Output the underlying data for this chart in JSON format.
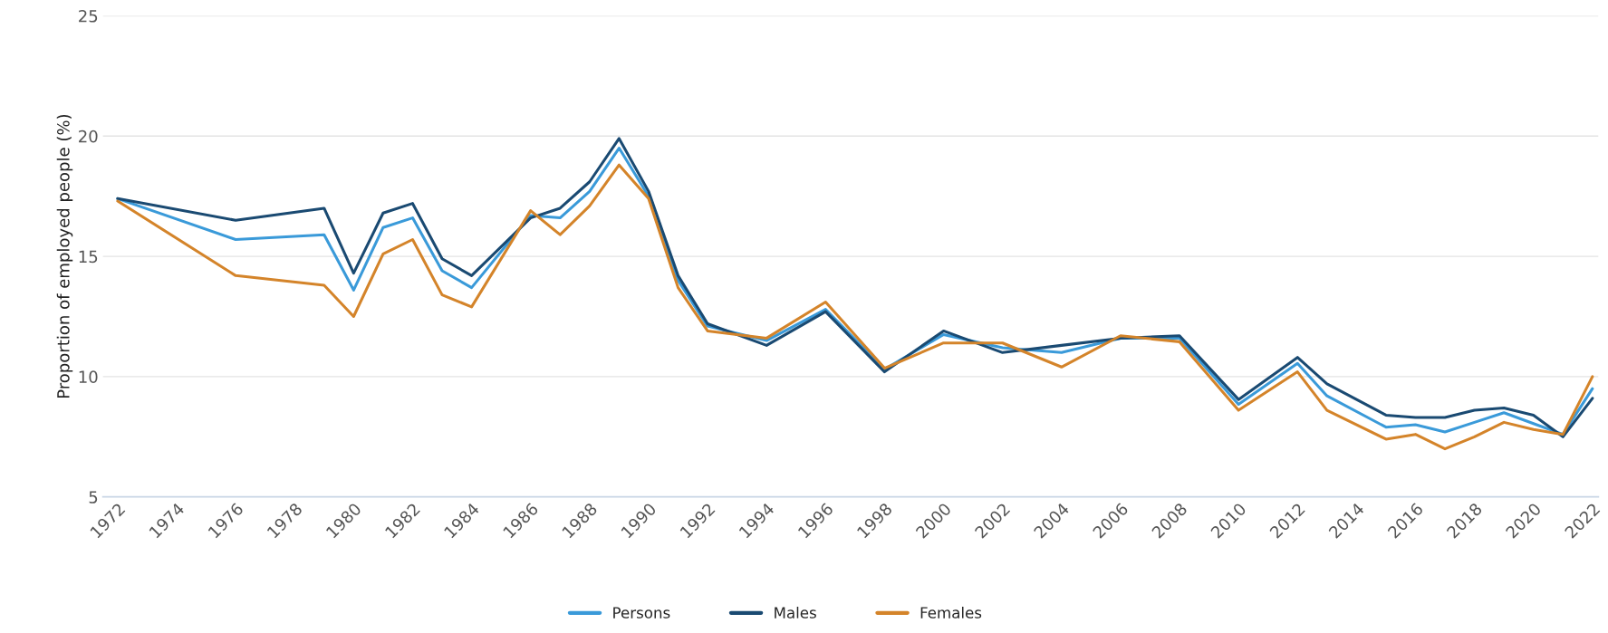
{
  "chart_data": {
    "type": "line",
    "ylabel": "Proportion of employed people (%)",
    "x": [
      1972,
      1976,
      1979,
      1980,
      1981,
      1982,
      1983,
      1984,
      1986,
      1987,
      1988,
      1989,
      1990,
      1991,
      1992,
      1994,
      1996,
      1998,
      2000,
      2002,
      2004,
      2006,
      2008,
      2010,
      2012,
      2013,
      2015,
      2016,
      2017,
      2018,
      2019,
      2020,
      2021,
      2022
    ],
    "series": [
      {
        "name": "Persons",
        "color": "#3a9ad9",
        "values": [
          17.4,
          15.7,
          15.9,
          13.6,
          16.2,
          16.6,
          14.4,
          13.7,
          16.7,
          16.6,
          17.7,
          19.5,
          17.5,
          14.0,
          12.1,
          11.5,
          12.8,
          10.3,
          11.75,
          11.2,
          11.0,
          11.6,
          11.6,
          8.85,
          10.55,
          9.2,
          7.9,
          8.0,
          7.7,
          8.1,
          8.5,
          8.05,
          7.6,
          9.5
        ]
      },
      {
        "name": "Males",
        "color": "#1a4a72",
        "values": [
          17.4,
          16.5,
          17.0,
          14.3,
          16.8,
          17.2,
          14.9,
          14.2,
          16.6,
          17.0,
          18.1,
          19.9,
          17.7,
          14.2,
          12.2,
          11.3,
          12.7,
          10.2,
          11.9,
          11.0,
          11.3,
          11.6,
          11.7,
          9.05,
          10.8,
          9.7,
          8.4,
          8.3,
          8.3,
          8.6,
          8.7,
          8.4,
          7.5,
          9.1
        ]
      },
      {
        "name": "Females",
        "color": "#d4842a",
        "values": [
          17.3,
          14.2,
          13.8,
          12.5,
          15.1,
          15.7,
          13.4,
          12.9,
          16.9,
          15.9,
          17.1,
          18.8,
          17.4,
          13.7,
          11.9,
          11.6,
          13.1,
          10.35,
          11.4,
          11.4,
          10.4,
          11.7,
          11.45,
          8.6,
          10.2,
          8.6,
          7.4,
          7.6,
          7.0,
          7.5,
          8.1,
          7.8,
          7.6,
          10.0
        ]
      }
    ],
    "xlim": [
      1971.5,
      2022.2
    ],
    "xticks": [
      1972,
      1974,
      1976,
      1978,
      1980,
      1982,
      1984,
      1986,
      1988,
      1990,
      1992,
      1994,
      1996,
      1998,
      2000,
      2002,
      2004,
      2006,
      2008,
      2010,
      2012,
      2014,
      2016,
      2018,
      2020,
      2022
    ],
    "ylim": [
      5,
      25
    ],
    "yticks": [
      5,
      10,
      15,
      20,
      25
    ],
    "grid": "y",
    "legend": "bottom",
    "marker": "none",
    "line_style": "solid"
  }
}
